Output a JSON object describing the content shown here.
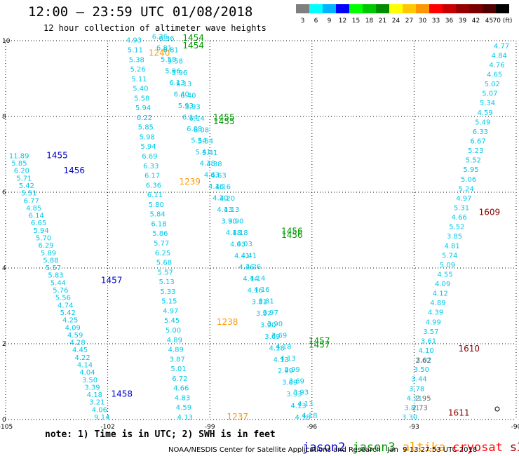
{
  "title": "12:00 – 23:59 UTC 01/08/2018",
  "subtitle": "12 hour collection of altimeter wave heights",
  "note": "note: 1) Time is in UTC; 2) SWH is in feet",
  "credit": "NOAA/NESDIS Center for Satellite Applications and Research   Jan  9 13:27:53 UTC 2018",
  "colorbar": {
    "labels": [
      "3",
      "6",
      "9",
      "12",
      "15",
      "18",
      "21",
      "24",
      "27",
      "30",
      "33",
      "36",
      "39",
      "42",
      "45",
      "70 (ft)"
    ],
    "colors": [
      "#7f7f7f",
      "#00ffff",
      "#00b4ff",
      "#0000ff",
      "#00ff00",
      "#00c800",
      "#008c00",
      "#ffff00",
      "#ffc800",
      "#ff9600",
      "#ff0000",
      "#c80000",
      "#960000",
      "#780000",
      "#500000",
      "#000000"
    ]
  },
  "legend": [
    {
      "name": "jason2",
      "color": "#0000cc"
    },
    {
      "name": "jason3",
      "color": "#009900"
    },
    {
      "name": "altika",
      "color": "#ff9900"
    },
    {
      "name": "cryosat",
      "color": "#ff0000"
    },
    {
      "name": "s3a",
      "color": "#990000"
    }
  ],
  "chart_data": {
    "type": "map",
    "xlim": [
      -105,
      -90
    ],
    "ylim": [
      0,
      10
    ],
    "x_ticks": [
      "-105",
      "-102",
      "-99",
      "-96",
      "-93",
      "-90"
    ],
    "y_ticks": [
      "0",
      "2",
      "4",
      "6",
      "8",
      "10"
    ],
    "time_labels": [
      {
        "text": "1455",
        "sat": "jason2",
        "lon": -103.8,
        "lat": 6.9
      },
      {
        "text": "1456",
        "sat": "jason2",
        "lon": -103.3,
        "lat": 6.5
      },
      {
        "text": "1457",
        "sat": "jason2",
        "lon": -102.2,
        "lat": 3.6
      },
      {
        "text": "1458",
        "sat": "jason2",
        "lon": -101.9,
        "lat": 0.6
      },
      {
        "text": "1454",
        "sat": "jason3",
        "lon": -99.8,
        "lat": 10.0
      },
      {
        "text": "1454",
        "sat": "jason3",
        "lon": -99.8,
        "lat": 9.8
      },
      {
        "text": "1455",
        "sat": "jason3",
        "lon": -98.9,
        "lat": 7.9
      },
      {
        "text": "1455",
        "sat": "jason3",
        "lon": -98.9,
        "lat": 7.8
      },
      {
        "text": "1456",
        "sat": "jason3",
        "lon": -96.9,
        "lat": 4.9
      },
      {
        "text": "1456",
        "sat": "jason3",
        "lon": -96.9,
        "lat": 4.8
      },
      {
        "text": "1457",
        "sat": "jason3",
        "lon": -96.1,
        "lat": 2.0
      },
      {
        "text": "1457",
        "sat": "jason3",
        "lon": -96.1,
        "lat": 1.9
      },
      {
        "text": "1240",
        "sat": "altika",
        "lon": -100.8,
        "lat": 9.6
      },
      {
        "text": "1239",
        "sat": "altika",
        "lon": -99.9,
        "lat": 6.2
      },
      {
        "text": "1238",
        "sat": "altika",
        "lon": -98.8,
        "lat": 2.5
      },
      {
        "text": "1237",
        "sat": "altika",
        "lon": -98.5,
        "lat": 0.0
      },
      {
        "text": "1609",
        "sat": "s3a",
        "lon": -91.1,
        "lat": 5.4
      },
      {
        "text": "1610",
        "sat": "s3a",
        "lon": -91.7,
        "lat": 1.8
      },
      {
        "text": "1611",
        "sat": "s3a",
        "lon": -92.0,
        "lat": 0.1
      }
    ],
    "track_a": {
      "values": [
        "11.89",
        "5.85",
        "6.20",
        "5.71",
        "5.42",
        "5.51",
        "6.77",
        "4.85",
        "6.14",
        "6.65",
        "5.94",
        "5.70",
        "6.29",
        "5.89",
        "5.88",
        "5.57",
        "5.83",
        "5.44",
        "5.76",
        "5.56",
        "4.74",
        "5.42",
        "4.25",
        "4.09",
        "4.59",
        "4.28",
        "4.45",
        "4.22",
        "4.14",
        "4.04",
        "3.50",
        "3.39",
        "4.18",
        "3.21",
        "4.06",
        "9.14"
      ]
    },
    "track_b": {
      "values": [
        "4.93",
        "5.11",
        "5.38",
        "5.26",
        "5.11",
        "5.40",
        "5.58",
        "5.94",
        "6.22",
        "5.85",
        "5.98",
        "5.94",
        "6.69",
        "6.33",
        "6.17",
        "6.36",
        "6.11",
        "5.80",
        "5.84",
        "6.18",
        "5.86",
        "5.77",
        "6.25",
        "5.68",
        "5.57",
        "5.13",
        "5.33",
        "5.15",
        "4.97",
        "5.45",
        "5.00",
        "4.89",
        "4.89",
        "3.87",
        "5.01",
        "6.72",
        "4.66",
        "4.83",
        "4.59",
        "4.13"
      ]
    },
    "track_c": {
      "values": [
        "4.77",
        "4.84",
        "4.76",
        "4.65",
        "5.02",
        "5.07",
        "5.34",
        "4.59",
        "5.49",
        "6.33",
        "6.67",
        "5.23",
        "5.52",
        "5.95",
        "5.06",
        "5.24",
        "4.97",
        "5.31",
        "4.66",
        "5.52",
        "3.85",
        "4.81",
        "5.74",
        "5.09",
        "4.55",
        "4.09",
        "4.12",
        "4.89",
        "4.39",
        "4.99",
        "3.57",
        "3.61",
        "4.10",
        "3.02",
        "3.50",
        "3.44",
        "3.78",
        "4.21",
        "3.81",
        "3.30"
      ]
    },
    "track_s3a_grey": {
      "values": [
        "2.62",
        "2.95",
        "2.73"
      ]
    },
    "track_d_sample": {
      "values": [
        "6.36",
        "6.81",
        "5.58",
        "5.96",
        "6.13",
        "6.40",
        "5.93",
        "6.14",
        "6.08",
        "5.54",
        "5.41",
        "4.38",
        "4.63",
        "4.16",
        "4.20",
        "4.13",
        "3.90",
        "4.18",
        "4.03",
        "4.41",
        "4.26",
        "4.14",
        "4.16",
        "3.81",
        "3.97",
        "3.90",
        "3.69",
        "4.18",
        "4.13",
        "2.99",
        "3.69",
        "3.93",
        "4.13",
        "4.18"
      ]
    }
  }
}
